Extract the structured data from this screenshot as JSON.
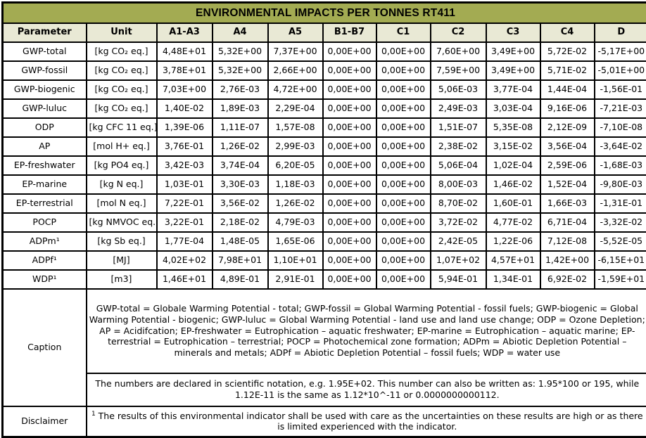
{
  "title": "ENVIRONMENTAL IMPACTS PER TONNES RT411",
  "colors": {
    "title_bg": "#a3ab52",
    "header_bg": "#e9e9d5",
    "border": "#000000",
    "cell_bg": "#ffffff"
  },
  "table": {
    "columns": [
      "Parameter",
      "Unit",
      "A1-A3",
      "A4",
      "A5",
      "B1-B7",
      "C1",
      "C2",
      "C3",
      "C4",
      "D"
    ],
    "rows": [
      [
        "GWP-total",
        "[kg CO₂ eq.]",
        "4,48E+01",
        "5,32E+00",
        "7,37E+00",
        "0,00E+00",
        "0,00E+00",
        "7,60E+00",
        "3,49E+00",
        "5,72E-02",
        "-5,17E+00"
      ],
      [
        "GWP-fossil",
        "[kg CO₂ eq.]",
        "3,78E+01",
        "5,32E+00",
        "2,66E+00",
        "0,00E+00",
        "0,00E+00",
        "7,59E+00",
        "3,49E+00",
        "5,71E-02",
        "-5,01E+00"
      ],
      [
        "GWP-biogenic",
        "[kg CO₂ eq.]",
        "7,03E+00",
        "2,76E-03",
        "4,72E+00",
        "0,00E+00",
        "0,00E+00",
        "5,06E-03",
        "3,77E-04",
        "1,44E-04",
        "-1,56E-01"
      ],
      [
        "GWP-luluc",
        "[kg CO₂ eq.]",
        "1,40E-02",
        "1,89E-03",
        "2,29E-04",
        "0,00E+00",
        "0,00E+00",
        "2,49E-03",
        "3,03E-04",
        "9,16E-06",
        "-7,21E-03"
      ],
      [
        "ODP",
        "[kg CFC 11 eq.]",
        "1,39E-06",
        "1,11E-07",
        "1,57E-08",
        "0,00E+00",
        "0,00E+00",
        "1,51E-07",
        "5,35E-08",
        "2,12E-09",
        "-7,10E-08"
      ],
      [
        "AP",
        "[mol H+ eq.]",
        "3,76E-01",
        "1,26E-02",
        "2,99E-03",
        "0,00E+00",
        "0,00E+00",
        "2,38E-02",
        "3,15E-02",
        "3,56E-04",
        "-3,64E-02"
      ],
      [
        "EP-freshwater",
        "[kg PO4 eq.]",
        "3,42E-03",
        "3,74E-04",
        "6,20E-05",
        "0,00E+00",
        "0,00E+00",
        "5,06E-04",
        "1,02E-04",
        "2,59E-06",
        "-1,68E-03"
      ],
      [
        "EP-marine",
        "[kg N eq.]",
        "1,03E-01",
        "3,30E-03",
        "1,18E-03",
        "0,00E+00",
        "0,00E+00",
        "8,00E-03",
        "1,46E-02",
        "1,52E-04",
        "-9,80E-03"
      ],
      [
        "EP-terrestrial",
        "[mol N eq.]",
        "7,22E-01",
        "3,56E-02",
        "1,26E-02",
        "0,00E+00",
        "0,00E+00",
        "8,70E-02",
        "1,60E-01",
        "1,66E-03",
        "-1,31E-01"
      ],
      [
        "POCP",
        "[kg NMVOC eq.]",
        "3,22E-01",
        "2,18E-02",
        "4,79E-03",
        "0,00E+00",
        "0,00E+00",
        "3,72E-02",
        "4,77E-02",
        "6,71E-04",
        "-3,32E-02"
      ],
      [
        "ADPm¹",
        "[kg Sb eq.]",
        "1,77E-04",
        "1,48E-05",
        "1,65E-06",
        "0,00E+00",
        "0,00E+00",
        "2,42E-05",
        "1,22E-06",
        "7,12E-08",
        "-5,52E-05"
      ],
      [
        "ADPf¹",
        "[MJ]",
        "4,02E+02",
        "7,98E+01",
        "1,10E+01",
        "0,00E+00",
        "0,00E+00",
        "1,07E+02",
        "4,57E+01",
        "1,42E+00",
        "-6,15E+01"
      ],
      [
        "WDP¹",
        "[m3]",
        "1,46E+01",
        "4,89E-01",
        "2,91E-01",
        "0,00E+00",
        "0,00E+00",
        "5,94E-01",
        "1,34E-01",
        "6,92E-02",
        "-1,59E+01"
      ]
    ]
  },
  "caption": {
    "label": "Caption",
    "definitions": "GWP-total = Globale Warming Potential - total; GWP-fossil = Global Warming Potential - fossil fuels; GWP-biogenic = Global Warming Potential - biogenic; GWP-luluc = Global Warming Potential - land use and land use change; ODP = Ozone Depletion; AP = Acidifcation; EP-freshwater = Eutrophication – aquatic freshwater; EP-marine = Eutrophication – aquatic marine; EP-terrestrial = Eutrophication – terrestrial; POCP = Photochemical zone formation; ADPm = Abiotic Depletion Potential – minerals and metals; ADPf = Abiotic Depletion Potential – fossil fuels; WDP = water use",
    "notation_note": "The numbers are declared in scientific notation, e.g. 1.95E+02. This number can also be written as: 1.95*100 or 195, while 1.12E-11 is the same as 1.12*10^-11 or 0.0000000000112."
  },
  "disclaimer": {
    "label": "Disclaimer",
    "sup": "1",
    "text": "The results of this environmental indicator shall be used with care as the uncertainties on these results are high or as there is limited experienced with the indicator."
  }
}
